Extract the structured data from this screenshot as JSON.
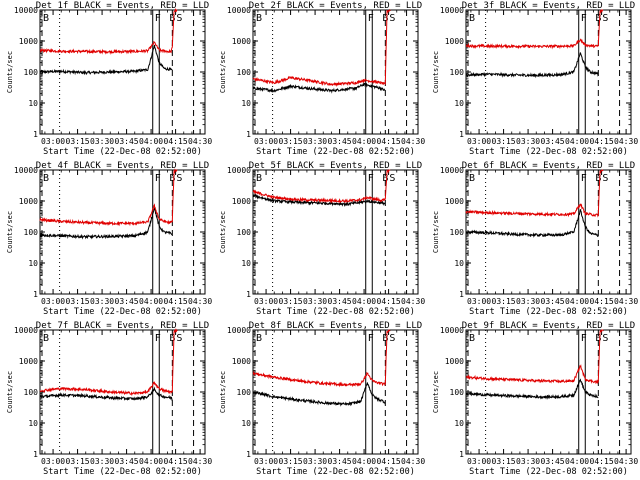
{
  "colors": {
    "events": "#000000",
    "lld": "#e00000",
    "axis": "#000000"
  },
  "chart_data": [
    {
      "type": "line",
      "title": "Det 1f BLACK = Events, RED = LLD",
      "ylabel": "Counts/sec",
      "xlabel": "Start Time (22-Dec-08 02:52:00)",
      "ylim": [
        1,
        10000
      ],
      "y_scale": "log",
      "xlim": [
        "02:52",
        "04:33"
      ],
      "xticks": [
        "03:00",
        "03:15",
        "03:30",
        "03:45",
        "04:00",
        "04:15",
        "04:30"
      ],
      "yticks": [
        "1",
        "10",
        "100",
        "1000",
        "10000"
      ],
      "region_labels": {
        "left": "B",
        "right": "B",
        "mid": "F",
        "right2": "S"
      },
      "series": [
        {
          "name": "BLACK = Events",
          "color": "#000000",
          "x": [
            "02:52",
            "03:05",
            "03:20",
            "03:35",
            "03:50",
            "03:58",
            "04:02",
            "04:05",
            "04:08",
            "04:12",
            "04:13"
          ],
          "values": [
            100,
            105,
            95,
            100,
            105,
            120,
            700,
            200,
            130,
            120,
            110
          ]
        },
        {
          "name": "RED = LLD",
          "color": "#e00000",
          "x": [
            "02:52",
            "03:05",
            "03:20",
            "03:35",
            "03:50",
            "03:58",
            "04:02",
            "04:05",
            "04:08",
            "04:12",
            "04:13",
            "04:14",
            "04:16"
          ],
          "values": [
            500,
            470,
            460,
            450,
            460,
            480,
            900,
            500,
            480,
            450,
            600,
            9000,
            10000
          ]
        }
      ],
      "vlines_solid": [
        "04:01",
        "04:05"
      ],
      "vlines_dashed": [
        "04:13",
        "04:26"
      ],
      "vline_dotted": "03:04"
    },
    {
      "type": "line",
      "title": "Det 2f BLACK = Events, RED = LLD",
      "ylabel": "Counts/sec",
      "xlabel": "Start Time (22-Dec-08 02:52:00)",
      "ylim": [
        1,
        10000
      ],
      "y_scale": "log",
      "xlim": [
        "02:52",
        "04:33"
      ],
      "xticks": [
        "03:00",
        "03:15",
        "03:30",
        "03:45",
        "04:00",
        "04:15",
        "04:30"
      ],
      "yticks": [
        "1",
        "10",
        "100",
        "1000",
        "10000"
      ],
      "region_labels": {
        "left": "B",
        "right": "B",
        "mid": "F",
        "right2": "S"
      },
      "series": [
        {
          "name": "BLACK = Events",
          "color": "#000000",
          "x": [
            "02:52",
            "03:05",
            "03:15",
            "03:25",
            "03:40",
            "03:55",
            "04:00",
            "04:05",
            "04:10",
            "04:13"
          ],
          "values": [
            30,
            25,
            35,
            30,
            25,
            30,
            40,
            35,
            30,
            25
          ]
        },
        {
          "name": "RED = LLD",
          "color": "#e00000",
          "x": [
            "02:52",
            "03:05",
            "03:15",
            "03:25",
            "03:40",
            "03:55",
            "04:00",
            "04:05",
            "04:10",
            "04:13",
            "04:14",
            "04:16"
          ],
          "values": [
            60,
            45,
            65,
            55,
            40,
            45,
            55,
            50,
            45,
            40,
            9000,
            10000
          ]
        }
      ],
      "vlines_solid": [
        "04:01",
        "04:05"
      ],
      "vlines_dashed": [
        "04:13",
        "04:26"
      ],
      "vline_dotted": "03:04"
    },
    {
      "type": "line",
      "title": "Det 3f BLACK = Events, RED = LLD",
      "ylabel": "Counts/sec",
      "xlabel": "Start Time (22-Dec-08 02:52:00)",
      "ylim": [
        1,
        10000
      ],
      "y_scale": "log",
      "xlim": [
        "02:52",
        "04:33"
      ],
      "xticks": [
        "03:00",
        "03:15",
        "03:30",
        "03:45",
        "04:00",
        "04:15",
        "04:30"
      ],
      "yticks": [
        "1",
        "10",
        "100",
        "1000",
        "10000"
      ],
      "region_labels": {
        "left": "B",
        "right": "B",
        "mid": "F",
        "right2": "S"
      },
      "series": [
        {
          "name": "BLACK = Events",
          "color": "#000000",
          "x": [
            "02:52",
            "03:05",
            "03:20",
            "03:35",
            "03:50",
            "03:58",
            "04:02",
            "04:05",
            "04:08",
            "04:12",
            "04:13"
          ],
          "values": [
            80,
            85,
            80,
            78,
            82,
            100,
            400,
            150,
            100,
            90,
            85
          ]
        },
        {
          "name": "RED = LLD",
          "color": "#e00000",
          "x": [
            "02:52",
            "03:05",
            "03:20",
            "03:35",
            "03:50",
            "03:58",
            "04:02",
            "04:05",
            "04:08",
            "04:12",
            "04:13",
            "04:14",
            "04:16"
          ],
          "values": [
            700,
            680,
            680,
            670,
            680,
            700,
            1100,
            750,
            700,
            680,
            700,
            9000,
            10000
          ]
        }
      ],
      "vlines_solid": [
        "04:01",
        "04:05"
      ],
      "vlines_dashed": [
        "04:13",
        "04:26"
      ],
      "vline_dotted": "03:04"
    },
    {
      "type": "line",
      "title": "Det 4f BLACK = Events, RED = LLD",
      "ylabel": "Counts/sec",
      "xlabel": "Start Time (22-Dec-08 02:52:00)",
      "ylim": [
        1,
        10000
      ],
      "y_scale": "log",
      "xlim": [
        "02:52",
        "04:33"
      ],
      "xticks": [
        "03:00",
        "03:15",
        "03:30",
        "03:45",
        "04:00",
        "04:15",
        "04:30"
      ],
      "yticks": [
        "1",
        "10",
        "100",
        "1000",
        "10000"
      ],
      "region_labels": {
        "left": "B",
        "right": "B",
        "mid": "F",
        "right2": "S"
      },
      "series": [
        {
          "name": "BLACK = Events",
          "color": "#000000",
          "x": [
            "02:52",
            "03:05",
            "03:20",
            "03:35",
            "03:50",
            "03:58",
            "04:02",
            "04:05",
            "04:08",
            "04:12",
            "04:13"
          ],
          "values": [
            80,
            75,
            70,
            72,
            75,
            100,
            600,
            150,
            100,
            90,
            85
          ]
        },
        {
          "name": "RED = LLD",
          "color": "#e00000",
          "x": [
            "02:52",
            "03:05",
            "03:20",
            "03:35",
            "03:50",
            "03:58",
            "04:02",
            "04:05",
            "04:08",
            "04:12",
            "04:13",
            "04:14",
            "04:16"
          ],
          "values": [
            250,
            220,
            200,
            190,
            190,
            210,
            700,
            260,
            220,
            200,
            220,
            9000,
            10000
          ]
        }
      ],
      "vlines_solid": [
        "04:01",
        "04:05"
      ],
      "vlines_dashed": [
        "04:13",
        "04:26"
      ],
      "vline_dotted": "03:04"
    },
    {
      "type": "line",
      "title": "Det 5f BLACK = Events, RED = LLD",
      "ylabel": "Counts/sec",
      "xlabel": "Start Time (22-Dec-08 02:52:00)",
      "ylim": [
        1,
        10000
      ],
      "y_scale": "log",
      "xlim": [
        "02:52",
        "04:33"
      ],
      "xticks": [
        "03:00",
        "03:15",
        "03:30",
        "03:45",
        "04:00",
        "04:15",
        "04:30"
      ],
      "yticks": [
        "1",
        "10",
        "100",
        "1000",
        "10000"
      ],
      "region_labels": {
        "left": "B",
        "right": "B",
        "mid": "F",
        "right2": "S"
      },
      "series": [
        {
          "name": "BLACK = Events",
          "color": "#000000",
          "x": [
            "02:52",
            "03:05",
            "03:20",
            "03:35",
            "03:50",
            "03:58",
            "04:02",
            "04:05",
            "04:08",
            "04:12",
            "04:13"
          ],
          "values": [
            1500,
            1000,
            900,
            850,
            800,
            900,
            1000,
            950,
            900,
            850,
            800
          ]
        },
        {
          "name": "RED = LLD",
          "color": "#e00000",
          "x": [
            "02:52",
            "03:05",
            "03:20",
            "03:35",
            "03:50",
            "03:58",
            "04:02",
            "04:05",
            "04:08",
            "04:12",
            "04:13",
            "04:14",
            "04:16"
          ],
          "values": [
            2000,
            1300,
            1100,
            1050,
            1000,
            1100,
            1300,
            1200,
            1100,
            1050,
            1100,
            9000,
            10000
          ]
        }
      ],
      "vlines_solid": [
        "04:01",
        "04:05"
      ],
      "vlines_dashed": [
        "04:13",
        "04:26"
      ],
      "vline_dotted": "03:04"
    },
    {
      "type": "line",
      "title": "Det 6f BLACK = Events, RED = LLD",
      "ylabel": "Counts/sec",
      "xlabel": "Start Time (22-Dec-08 02:52:00)",
      "ylim": [
        1,
        10000
      ],
      "y_scale": "log",
      "xlim": [
        "02:52",
        "04:33"
      ],
      "xticks": [
        "03:00",
        "03:15",
        "03:30",
        "03:45",
        "04:00",
        "04:15",
        "04:30"
      ],
      "yticks": [
        "1",
        "10",
        "100",
        "1000",
        "10000"
      ],
      "region_labels": {
        "left": "B",
        "right": "B",
        "mid": "F",
        "right2": "S"
      },
      "series": [
        {
          "name": "BLACK = Events",
          "color": "#000000",
          "x": [
            "02:52",
            "03:05",
            "03:20",
            "03:35",
            "03:50",
            "03:58",
            "04:02",
            "04:05",
            "04:08",
            "04:12",
            "04:13"
          ],
          "values": [
            100,
            95,
            85,
            80,
            80,
            100,
            500,
            150,
            90,
            80,
            75
          ]
        },
        {
          "name": "RED = LLD",
          "color": "#e00000",
          "x": [
            "02:52",
            "03:05",
            "03:20",
            "03:35",
            "03:50",
            "03:58",
            "04:02",
            "04:05",
            "04:08",
            "04:12",
            "04:13",
            "04:14",
            "04:16"
          ],
          "values": [
            450,
            420,
            400,
            380,
            370,
            380,
            800,
            400,
            370,
            350,
            360,
            9000,
            10000
          ]
        }
      ],
      "vlines_solid": [
        "04:01",
        "04:05"
      ],
      "vlines_dashed": [
        "04:13",
        "04:26"
      ],
      "vline_dotted": "03:04"
    },
    {
      "type": "line",
      "title": "Det 7f BLACK = Events, RED = LLD",
      "ylabel": "Counts/sec",
      "xlabel": "Start Time (22-Dec-08 02:52:00)",
      "ylim": [
        1,
        10000
      ],
      "y_scale": "log",
      "xlim": [
        "02:52",
        "04:33"
      ],
      "xticks": [
        "03:00",
        "03:15",
        "03:30",
        "03:45",
        "04:00",
        "04:15",
        "04:30"
      ],
      "yticks": [
        "1",
        "10",
        "100",
        "1000",
        "10000"
      ],
      "region_labels": {
        "left": "B",
        "right": "B",
        "mid": "F",
        "right2": "S"
      },
      "series": [
        {
          "name": "BLACK = Events",
          "color": "#000000",
          "x": [
            "02:52",
            "03:05",
            "03:20",
            "03:35",
            "03:50",
            "03:58",
            "04:02",
            "04:05",
            "04:08",
            "04:12",
            "04:13"
          ],
          "values": [
            70,
            80,
            75,
            65,
            60,
            70,
            120,
            80,
            70,
            65,
            60
          ]
        },
        {
          "name": "RED = LLD",
          "color": "#e00000",
          "x": [
            "02:52",
            "03:05",
            "03:20",
            "03:35",
            "03:50",
            "03:58",
            "04:02",
            "04:05",
            "04:08",
            "04:12",
            "04:13",
            "04:14",
            "04:16"
          ],
          "values": [
            110,
            130,
            120,
            100,
            90,
            100,
            200,
            130,
            110,
            100,
            100,
            9000,
            10000
          ]
        }
      ],
      "vlines_solid": [
        "04:01",
        "04:05"
      ],
      "vlines_dashed": [
        "04:13",
        "04:26"
      ],
      "vline_dotted": "03:04"
    },
    {
      "type": "line",
      "title": "Det 8f BLACK = Events, RED = LLD",
      "ylabel": "Counts/sec",
      "xlabel": "Start Time (22-Dec-08 02:52:00)",
      "ylim": [
        1,
        10000
      ],
      "y_scale": "log",
      "xlim": [
        "02:52",
        "04:33"
      ],
      "xticks": [
        "03:00",
        "03:15",
        "03:30",
        "03:45",
        "04:00",
        "04:15",
        "04:30"
      ],
      "yticks": [
        "1",
        "10",
        "100",
        "1000",
        "10000"
      ],
      "region_labels": {
        "left": "B",
        "right": "B",
        "mid": "F",
        "right2": "S"
      },
      "series": [
        {
          "name": "BLACK = Events",
          "color": "#000000",
          "x": [
            "02:52",
            "03:05",
            "03:20",
            "03:35",
            "03:50",
            "03:58",
            "04:02",
            "04:05",
            "04:08",
            "04:12",
            "04:13"
          ],
          "values": [
            100,
            70,
            55,
            45,
            40,
            50,
            200,
            80,
            60,
            50,
            45
          ]
        },
        {
          "name": "RED = LLD",
          "color": "#e00000",
          "x": [
            "02:52",
            "03:05",
            "03:20",
            "03:35",
            "03:50",
            "03:58",
            "04:02",
            "04:05",
            "04:08",
            "04:12",
            "04:13",
            "04:14",
            "04:16"
          ],
          "values": [
            400,
            300,
            230,
            190,
            170,
            180,
            400,
            230,
            200,
            180,
            180,
            9000,
            10000
          ]
        }
      ],
      "vlines_solid": [
        "04:01",
        "04:05"
      ],
      "vlines_dashed": [
        "04:13",
        "04:26"
      ],
      "vline_dotted": "03:04"
    },
    {
      "type": "line",
      "title": "Det 9f BLACK = Events, RED = LLD",
      "ylabel": "Counts/sec",
      "xlabel": "Start Time (22-Dec-08 02:52:00)",
      "ylim": [
        1,
        10000
      ],
      "y_scale": "log",
      "xlim": [
        "02:52",
        "04:33"
      ],
      "xticks": [
        "03:00",
        "03:15",
        "03:30",
        "03:45",
        "04:00",
        "04:15",
        "04:30"
      ],
      "yticks": [
        "1",
        "10",
        "100",
        "1000",
        "10000"
      ],
      "region_labels": {
        "left": "B",
        "right": "B",
        "mid": "F",
        "right2": "S"
      },
      "series": [
        {
          "name": "BLACK = Events",
          "color": "#000000",
          "x": [
            "02:52",
            "03:05",
            "03:20",
            "03:35",
            "03:50",
            "03:58",
            "04:02",
            "04:05",
            "04:08",
            "04:12",
            "04:13"
          ],
          "values": [
            90,
            80,
            75,
            70,
            70,
            80,
            250,
            100,
            80,
            70,
            65
          ]
        },
        {
          "name": "RED = LLD",
          "color": "#e00000",
          "x": [
            "02:52",
            "03:05",
            "03:20",
            "03:35",
            "03:50",
            "03:58",
            "04:02",
            "04:05",
            "04:08",
            "04:12",
            "04:13",
            "04:14",
            "04:16"
          ],
          "values": [
            300,
            270,
            250,
            230,
            220,
            230,
            700,
            260,
            230,
            210,
            210,
            9000,
            10000
          ]
        }
      ],
      "vlines_solid": [
        "04:01",
        "04:05"
      ],
      "vlines_dashed": [
        "04:13",
        "04:26"
      ],
      "vline_dotted": "03:04"
    }
  ]
}
